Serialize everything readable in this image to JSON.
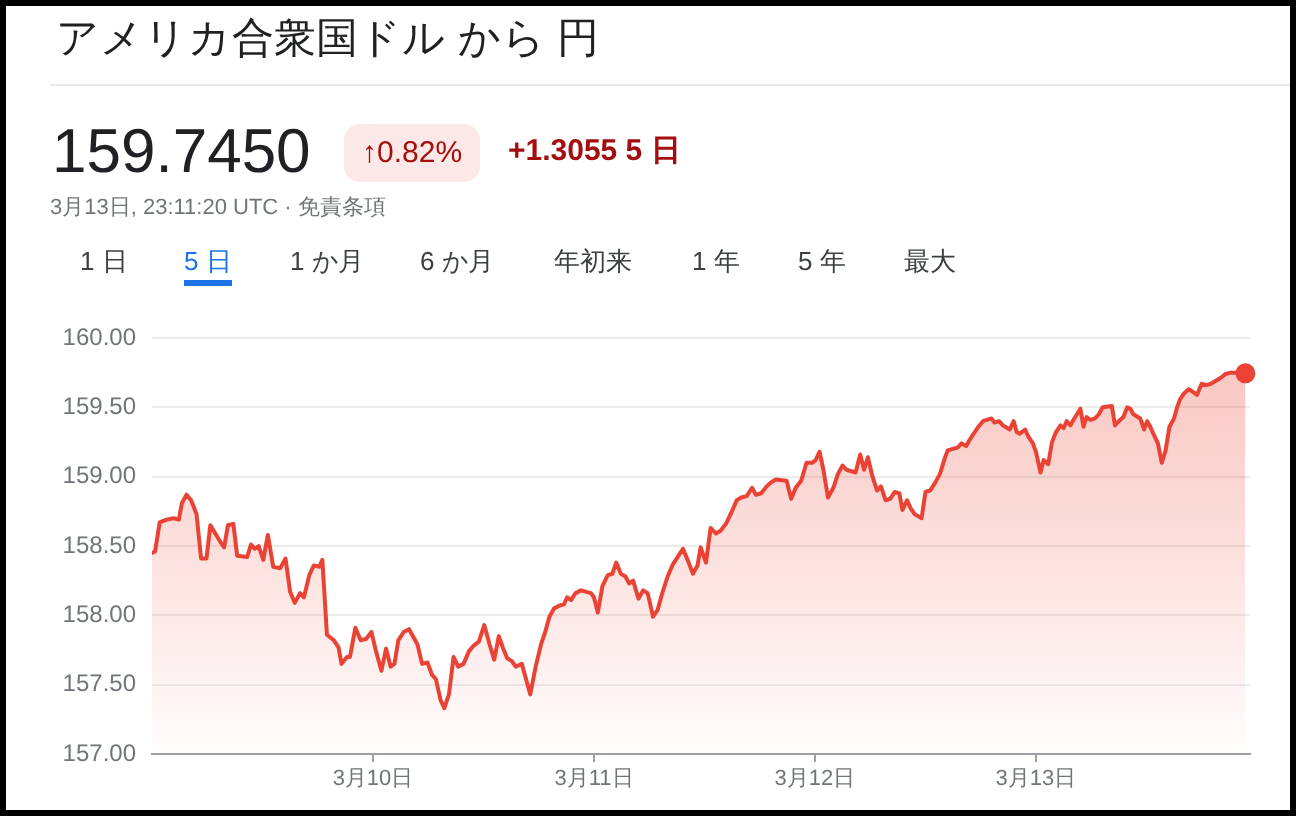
{
  "chart_data": {
    "type": "area",
    "title": "アメリカ合衆国ドル から 円",
    "annotations": [
      "159.7450",
      "↑0.82%",
      "+1.3055 5 日",
      "3月13日, 23:11:20 UTC · 免責条項",
      "1 日",
      "5 日",
      "1 か月",
      "6 か月",
      "年初来",
      "1 年",
      "5 年",
      "最大"
    ],
    "xlim": [
      "--03-09T00:00",
      "--03-13T23:15"
    ],
    "xticks": [
      {
        "value": "--03-10",
        "label": "3月10日"
      },
      {
        "value": "--03-11",
        "label": "3月11日"
      },
      {
        "value": "--03-12",
        "label": "3月12日"
      },
      {
        "value": "--03-13",
        "label": "3月13日"
      }
    ],
    "ylim": [
      157,
      160
    ],
    "yticks": [
      {
        "value": 157,
        "label": "157.00"
      },
      {
        "value": 157.5,
        "label": "157.50"
      },
      {
        "value": 158,
        "label": "158.00"
      },
      {
        "value": 158.5,
        "label": "158.50"
      },
      {
        "value": 159,
        "label": "159.00"
      },
      {
        "value": 159.5,
        "label": "159.50"
      },
      {
        "value": 160,
        "label": "160.00"
      }
    ],
    "grid": "y",
    "series": [
      {
        "color": "#ea4335",
        "x": [
          "--03-09T00:00",
          "--03-09T00:20",
          "--03-09T00:50",
          "--03-09T01:35",
          "--03-09T02:20",
          "--03-09T02:55",
          "--03-09T03:15",
          "--03-09T03:45",
          "--03-09T04:15",
          "--03-09T04:50",
          "--03-09T05:20",
          "--03-09T05:55",
          "--03-09T06:20",
          "--03-09T07:25",
          "--03-09T07:50",
          "--03-09T08:15",
          "--03-09T08:50",
          "--03-09T09:15",
          "--03-09T10:20",
          "--03-09T10:45",
          "--03-09T11:10",
          "--03-09T11:35",
          "--03-09T12:05",
          "--03-09T12:35",
          "--03-09T13:10",
          "--03-09T13:55",
          "--03-09T14:30",
          "--03-09T15:00",
          "--03-09T15:30",
          "--03-09T16:05",
          "--03-09T16:30",
          "--03-09T17:05",
          "--03-09T17:35",
          "--03-09T18:10",
          "--03-09T18:30",
          "--03-09T19:00",
          "--03-09T19:45",
          "--03-09T20:15",
          "--03-09T20:35",
          "--03-09T21:10",
          "--03-09T21:30",
          "--03-09T22:05",
          "--03-09T22:40",
          "--03-09T23:15",
          "--03-09T23:50",
          "--03-10T00:20",
          "--03-10T00:55",
          "--03-10T01:25",
          "--03-10T01:55",
          "--03-10T02:20",
          "--03-10T02:45",
          "--03-10T03:20",
          "--03-10T03:55",
          "--03-10T04:25",
          "--03-10T04:50",
          "--03-10T05:20",
          "--03-10T05:55",
          "--03-10T06:25",
          "--03-10T06:50",
          "--03-10T07:20",
          "--03-10T07:45",
          "--03-10T08:15",
          "--03-10T08:45",
          "--03-10T09:15",
          "--03-10T09:50",
          "--03-10T10:25",
          "--03-10T10:55",
          "--03-10T11:30",
          "--03-10T12:05",
          "--03-10T12:40",
          "--03-10T13:10",
          "--03-10T13:40",
          "--03-10T14:05",
          "--03-10T14:35",
          "--03-10T15:05",
          "--03-10T15:30",
          "--03-10T16:10",
          "--03-10T16:35",
          "--03-10T17:05",
          "--03-10T17:40",
          "--03-10T18:15",
          "--03-10T18:45",
          "--03-10T19:10",
          "--03-10T19:40",
          "--03-10T20:15",
          "--03-10T20:45",
          "--03-10T21:05",
          "--03-10T21:30",
          "--03-10T22:00",
          "--03-10T22:35",
          "--03-10T23:40",
          "--03-11T00:00",
          "--03-11T00:25",
          "--03-11T00:55",
          "--03-11T01:30",
          "--03-11T02:00",
          "--03-11T02:25",
          "--03-11T02:55",
          "--03-11T03:25",
          "--03-11T03:50",
          "--03-11T04:15",
          "--03-11T04:50",
          "--03-11T05:20",
          "--03-11T05:50",
          "--03-11T06:25",
          "--03-11T06:55",
          "--03-11T07:25",
          "--03-11T08:00",
          "--03-11T08:35",
          "--03-11T09:05",
          "--03-11T09:40",
          "--03-11T10:10",
          "--03-11T10:45",
          "--03-11T11:15",
          "--03-11T11:35",
          "--03-11T12:10",
          "--03-11T12:40",
          "--03-11T13:15",
          "--03-11T13:45",
          "--03-11T14:20",
          "--03-11T14:55",
          "--03-11T15:30",
          "--03-11T16:00",
          "--03-11T16:35",
          "--03-11T17:10",
          "--03-11T17:35",
          "--03-11T18:10",
          "--03-11T18:45",
          "--03-11T19:15",
          "--03-11T19:45",
          "--03-11T20:55",
          "--03-11T21:25",
          "--03-11T21:55",
          "--03-11T22:30",
          "--03-11T23:05",
          "--03-11T23:40",
          "--03-12T00:05",
          "--03-12T00:30",
          "--03-12T00:55",
          "--03-12T01:25",
          "--03-12T02:00",
          "--03-12T02:30",
          "--03-12T03:00",
          "--03-12T03:25",
          "--03-12T04:25",
          "--03-12T04:55",
          "--03-12T05:20",
          "--03-12T05:45",
          "--03-12T06:15",
          "--03-12T06:45",
          "--03-12T07:10",
          "--03-12T07:40",
          "--03-12T08:10",
          "--03-12T08:40",
          "--03-12T09:10",
          "--03-12T09:30",
          "--03-12T10:00",
          "--03-12T10:25",
          "--03-12T10:50",
          "--03-12T11:35",
          "--03-12T12:00",
          "--03-12T12:30",
          "--03-12T13:00",
          "--03-12T13:35",
          "--03-12T14:05",
          "--03-12T14:25",
          "--03-12T15:30",
          "--03-12T15:55",
          "--03-12T16:25",
          "--03-12T16:45",
          "--03-12T17:15",
          "--03-12T17:45",
          "--03-12T18:15",
          "--03-12T19:10",
          "--03-12T19:30",
          "--03-12T20:00",
          "--03-12T20:25",
          "--03-12T21:10",
          "--03-12T21:35",
          "--03-12T21:55",
          "--03-12T22:15",
          "--03-12T22:50",
          "--03-12T23:10",
          "--03-12T23:40",
          "--03-13T00:00",
          "--03-13T00:30",
          "--03-13T00:50",
          "--03-13T01:20",
          "--03-13T01:45",
          "--03-13T02:10",
          "--03-13T02:40",
          "--03-13T03:00",
          "--03-13T03:20",
          "--03-13T03:45",
          "--03-13T04:05",
          "--03-13T04:50",
          "--03-13T05:10",
          "--03-13T05:30",
          "--03-13T05:55",
          "--03-13T06:25",
          "--03-13T06:50",
          "--03-13T07:15",
          "--03-13T08:15",
          "--03-13T08:35",
          "--03-13T09:00",
          "--03-13T09:30",
          "--03-13T09:55",
          "--03-13T10:15",
          "--03-13T10:35",
          "--03-13T11:20",
          "--03-13T11:45",
          "--03-13T12:05",
          "--03-13T12:25",
          "--03-13T12:45",
          "--03-13T13:15",
          "--03-13T13:40",
          "--03-13T14:05",
          "--03-13T14:30",
          "--03-13T15:00",
          "--03-13T15:20",
          "--03-13T15:40",
          "--03-13T16:05",
          "--03-13T16:35",
          "--03-13T17:05",
          "--03-13T17:30",
          "--03-13T18:00",
          "--03-13T18:30",
          "--03-13T19:00",
          "--03-13T19:30",
          "--03-13T20:00",
          "--03-13T20:35",
          "--03-13T21:10",
          "--03-13T21:40",
          "--03-13T22:15",
          "--03-13T22:45"
        ],
        "values": [
          158.45,
          158.46,
          158.67,
          158.69,
          158.7,
          158.69,
          158.81,
          158.87,
          158.83,
          158.73,
          158.41,
          158.41,
          158.65,
          158.53,
          158.49,
          158.65,
          158.66,
          158.43,
          158.42,
          158.51,
          158.48,
          158.5,
          158.4,
          158.58,
          158.35,
          158.34,
          158.41,
          158.17,
          158.09,
          158.16,
          158.13,
          158.29,
          158.36,
          158.35,
          158.4,
          157.86,
          157.82,
          157.77,
          157.65,
          157.7,
          157.7,
          157.91,
          157.82,
          157.83,
          157.88,
          157.74,
          157.6,
          157.76,
          157.63,
          157.65,
          157.82,
          157.88,
          157.9,
          157.84,
          157.79,
          157.65,
          157.66,
          157.57,
          157.54,
          157.39,
          157.33,
          157.43,
          157.7,
          157.63,
          157.65,
          157.74,
          157.78,
          157.81,
          157.93,
          157.79,
          157.68,
          157.85,
          157.77,
          157.69,
          157.67,
          157.63,
          157.65,
          157.55,
          157.43,
          157.63,
          157.79,
          157.89,
          157.99,
          158.05,
          158.07,
          158.08,
          158.13,
          158.11,
          158.16,
          158.18,
          158.16,
          158.13,
          158.02,
          158.21,
          158.29,
          158.3,
          158.38,
          158.3,
          158.28,
          158.23,
          158.25,
          158.12,
          158.18,
          158.16,
          157.99,
          158.04,
          158.16,
          158.28,
          158.37,
          158.42,
          158.48,
          158.4,
          158.3,
          158.36,
          158.49,
          158.38,
          158.63,
          158.59,
          158.61,
          158.66,
          158.74,
          158.83,
          158.85,
          158.86,
          158.92,
          158.87,
          158.88,
          158.93,
          158.96,
          158.98,
          158.97,
          158.84,
          158.92,
          158.97,
          159.1,
          159.1,
          159.12,
          159.18,
          159.05,
          158.85,
          158.92,
          159.02,
          159.08,
          159.05,
          159.03,
          159.16,
          159.05,
          159.14,
          159.0,
          158.9,
          158.93,
          158.83,
          158.84,
          158.89,
          158.88,
          158.76,
          158.83,
          158.77,
          158.73,
          158.7,
          158.89,
          158.9,
          158.95,
          159.02,
          159.13,
          159.19,
          159.21,
          159.24,
          159.22,
          159.26,
          159.31,
          159.36,
          159.4,
          159.42,
          159.39,
          159.4,
          159.37,
          159.34,
          159.4,
          159.32,
          159.31,
          159.34,
          159.29,
          159.24,
          159.18,
          159.03,
          159.12,
          159.09,
          159.25,
          159.32,
          159.37,
          159.35,
          159.4,
          159.37,
          159.41,
          159.49,
          159.36,
          159.43,
          159.41,
          159.42,
          159.45,
          159.5,
          159.51,
          159.37,
          159.4,
          159.43,
          159.5,
          159.49,
          159.45,
          159.42,
          159.34,
          159.4,
          159.36,
          159.31,
          159.24,
          159.1,
          159.19,
          159.36,
          159.42,
          159.5,
          159.56,
          159.6,
          159.63,
          159.61,
          159.59,
          159.67,
          159.66,
          159.67,
          159.69,
          159.71,
          159.74,
          159.75,
          159.75,
          159.76,
          159.745
        ]
      },
      {
        "type": "scatter",
        "color": "#ea4335",
        "marker": "circle",
        "x": [
          "--03-13T22:45"
        ],
        "values": [
          159.745
        ]
      }
    ]
  }
}
